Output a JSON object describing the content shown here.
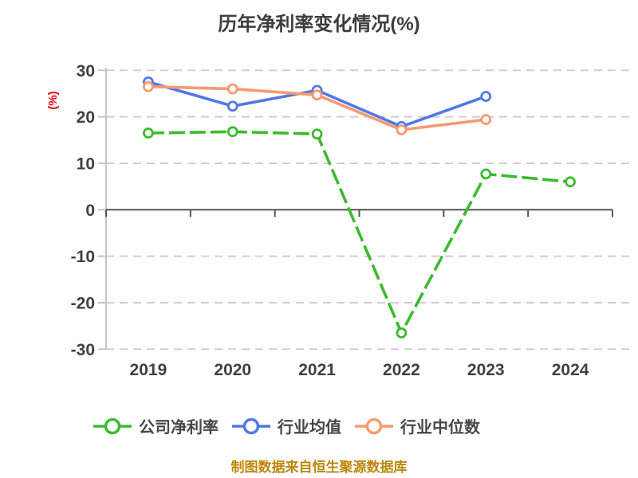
{
  "title": "历年净利率变化情况(%)",
  "footer_note": "制图数据来自恒生聚源数据库",
  "chart_data": {
    "type": "line",
    "title": "历年净利率变化情况(%)",
    "categories": [
      "2019",
      "2020",
      "2021",
      "2022",
      "2023",
      "2024"
    ],
    "series": [
      {
        "id": "company-net-margin",
        "name": "公司净利率",
        "color": "#3bbb2e",
        "line_style": "dashed",
        "marker": "circle",
        "values": [
          16.5,
          16.8,
          16.3,
          -26.5,
          7.7,
          6.0
        ]
      },
      {
        "id": "industry-average",
        "name": "行业均值",
        "color": "#5377e8",
        "line_style": "solid",
        "marker": "circle",
        "values": [
          27.5,
          22.3,
          25.7,
          17.9,
          24.4,
          null
        ]
      },
      {
        "id": "industry-median",
        "name": "行业中位数",
        "color": "#f79a72",
        "line_style": "solid",
        "marker": "circle",
        "values": [
          26.5,
          26.0,
          24.7,
          17.2,
          19.4,
          null
        ]
      }
    ],
    "xlabel": "",
    "ylabel": "(%)",
    "ylim": [
      -30,
      30
    ],
    "y_ticks": [
      30,
      20,
      10,
      0,
      -10,
      -20,
      -30
    ],
    "grid": "horizontal-dashed",
    "legend_position": "bottom"
  },
  "colors": {
    "background": "#ffffff",
    "title_text": "#3d3d3d",
    "axis_text": "#404040",
    "ylabel_text": "#e60000",
    "gridline": "#cfcfcf",
    "zero_axis_line": "#555555",
    "y_axis_line": "#c4c4c4",
    "legend_text": "#474747",
    "footer_text": "#bd860b",
    "marker_fill": "#ffffff"
  }
}
